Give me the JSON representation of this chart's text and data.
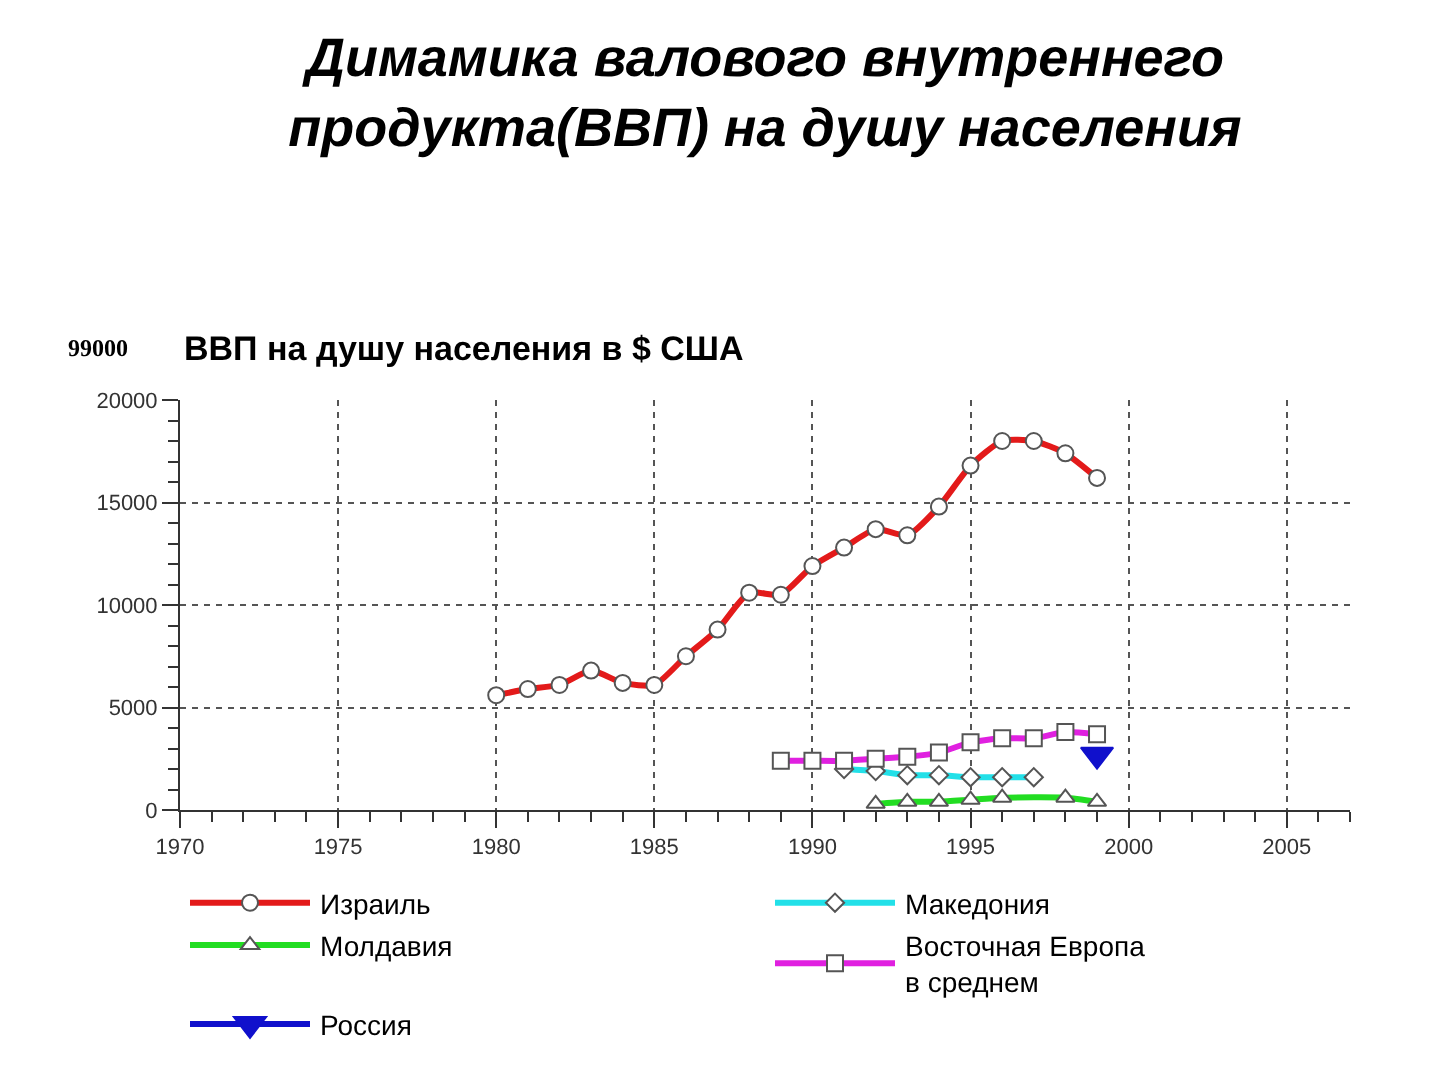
{
  "chart_data": {
    "type": "line",
    "title": "Димамика валового внутреннего продукта(ВВП) на душу населения",
    "subtitle": "ВВП на душу населения в $ США",
    "annotations": [
      "99000"
    ],
    "xlim": [
      1970,
      2007
    ],
    "xticks": [
      1970,
      1975,
      1980,
      1985,
      1990,
      1995,
      2000,
      2005
    ],
    "ylim": [
      0,
      20000
    ],
    "yticks": [
      0,
      5000,
      10000,
      15000,
      20000
    ],
    "grid": true,
    "legend": "bottom",
    "line_style": "solid",
    "series": [
      {
        "name": "Израиль",
        "color": "#e31a1a",
        "marker": "circle",
        "x": [
          1980,
          1981,
          1982,
          1983,
          1984,
          1985,
          1986,
          1987,
          1988,
          1989,
          1990,
          1991,
          1992,
          1993,
          1994,
          1995,
          1996,
          1997,
          1998,
          1999
        ],
        "values": [
          5600,
          5900,
          6100,
          6800,
          6200,
          6100,
          7500,
          8800,
          10600,
          10500,
          11900,
          12800,
          13700,
          13400,
          14800,
          16800,
          18000,
          18000,
          17400,
          16200
        ]
      },
      {
        "name": "Македония",
        "color": "#22e0e8",
        "marker": "diamond",
        "x": [
          1991,
          1992,
          1993,
          1994,
          1995,
          1996,
          1997
        ],
        "values": [
          2000,
          1900,
          1700,
          1700,
          1600,
          1600,
          1600
        ]
      },
      {
        "name": "Молдавия",
        "color": "#22dd22",
        "marker": "triangle",
        "x": [
          1992,
          1993,
          1994,
          1995,
          1996,
          1998,
          1999
        ],
        "values": [
          300,
          400,
          400,
          500,
          600,
          600,
          400
        ]
      },
      {
        "name": "Восточная Европа в среднем",
        "color": "#e020e0",
        "marker": "square",
        "x": [
          1989,
          1990,
          1991,
          1992,
          1993,
          1994,
          1995,
          1996,
          1997,
          1998,
          1999
        ],
        "values": [
          2400,
          2400,
          2400,
          2500,
          2600,
          2800,
          3300,
          3500,
          3500,
          3800,
          3700
        ]
      },
      {
        "name": "Россия",
        "color": "#1010cc",
        "marker": "triangle-down",
        "x": [
          1999
        ],
        "values": [
          2700
        ]
      }
    ]
  }
}
